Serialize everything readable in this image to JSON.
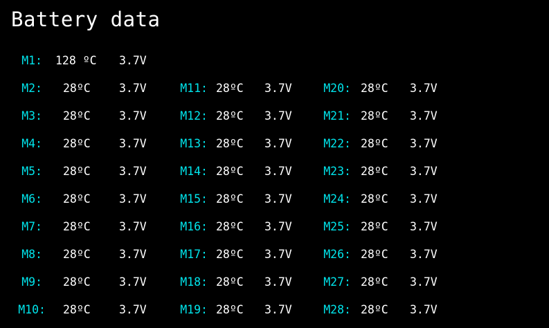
{
  "title": "Battery data",
  "colors": {
    "background": "#000000",
    "label": "#00e5ec",
    "value": "#ffffff"
  },
  "modules": {
    "col1": [
      {
        "label": "M1:",
        "temp": "128 ºC",
        "volt": "3.7V"
      },
      {
        "label": "M2:",
        "temp": "28ºC",
        "volt": "3.7V"
      },
      {
        "label": "M3:",
        "temp": "28ºC",
        "volt": "3.7V"
      },
      {
        "label": "M4:",
        "temp": "28ºC",
        "volt": "3.7V"
      },
      {
        "label": "M5:",
        "temp": "28ºC",
        "volt": "3.7V"
      },
      {
        "label": "M6:",
        "temp": "28ºC",
        "volt": "3.7V"
      },
      {
        "label": "M7:",
        "temp": "28ºC",
        "volt": "3.7V"
      },
      {
        "label": "M8:",
        "temp": "28ºC",
        "volt": "3.7V"
      },
      {
        "label": "M9:",
        "temp": "28ºC",
        "volt": "3.7V"
      },
      {
        "label": "M10:",
        "temp": "28ºC",
        "volt": "3.7V"
      }
    ],
    "col2": [
      {
        "label": "M11:",
        "temp": "28ºC",
        "volt": "3.7V"
      },
      {
        "label": "M12:",
        "temp": "28ºC",
        "volt": "3.7V"
      },
      {
        "label": "M13:",
        "temp": "28ºC",
        "volt": "3.7V"
      },
      {
        "label": "M14:",
        "temp": "28ºC",
        "volt": "3.7V"
      },
      {
        "label": "M15:",
        "temp": "28ºC",
        "volt": "3.7V"
      },
      {
        "label": "M16:",
        "temp": "28ºC",
        "volt": "3.7V"
      },
      {
        "label": "M17:",
        "temp": "28ºC",
        "volt": "3.7V"
      },
      {
        "label": "M18:",
        "temp": "28ºC",
        "volt": "3.7V"
      },
      {
        "label": "M19:",
        "temp": "28ºC",
        "volt": "3.7V"
      }
    ],
    "col3": [
      {
        "label": "M20:",
        "temp": "28ºC",
        "volt": "3.7V"
      },
      {
        "label": "M21:",
        "temp": "28ºC",
        "volt": "3.7V"
      },
      {
        "label": "M22:",
        "temp": "28ºC",
        "volt": "3.7V"
      },
      {
        "label": "M23:",
        "temp": "28ºC",
        "volt": "3.7V"
      },
      {
        "label": "M24:",
        "temp": "28ºC",
        "volt": "3.7V"
      },
      {
        "label": "M25:",
        "temp": "28ºC",
        "volt": "3.7V"
      },
      {
        "label": "M26:",
        "temp": "28ºC",
        "volt": "3.7V"
      },
      {
        "label": "M27:",
        "temp": "28ºC",
        "volt": "3.7V"
      },
      {
        "label": "M28:",
        "temp": "28ºC",
        "volt": "3.7V"
      }
    ]
  }
}
